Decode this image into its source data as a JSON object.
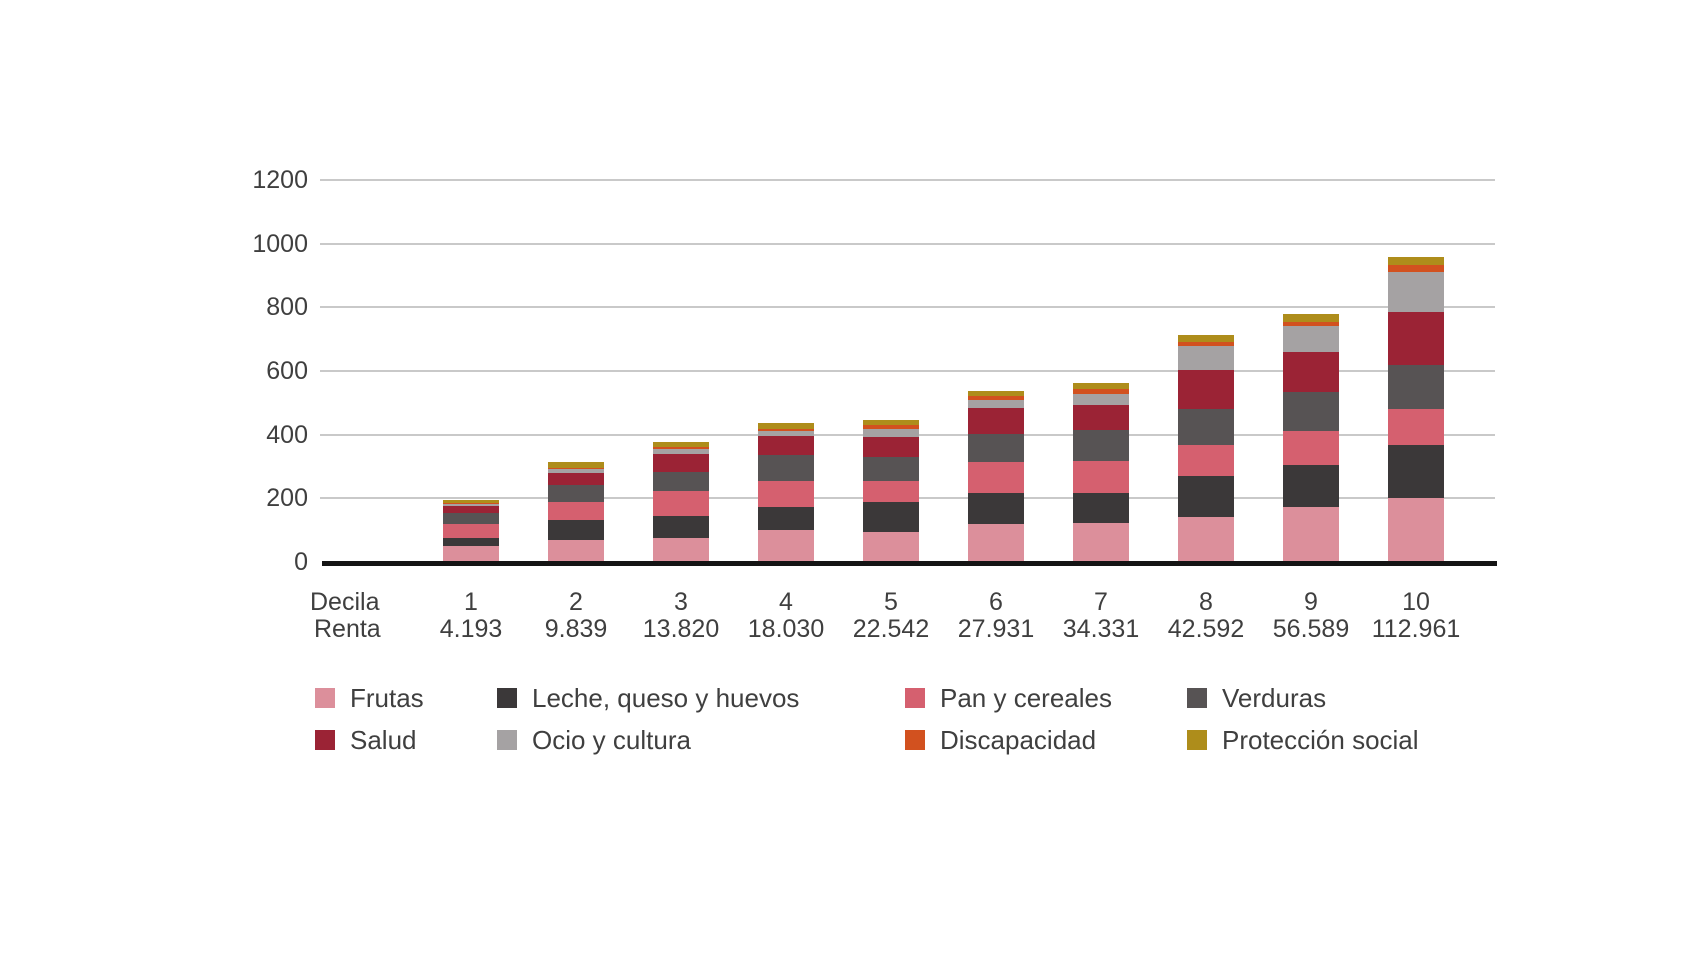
{
  "chart_data": {
    "type": "bar",
    "stacked": true,
    "title": "",
    "xlabel": "",
    "ylabel": "",
    "ylim": [
      0,
      1200
    ],
    "y_ticks": [
      0,
      200,
      400,
      600,
      800,
      1000,
      1200
    ],
    "grid": true,
    "legend_position": "bottom",
    "categories": [
      "1",
      "2",
      "3",
      "4",
      "5",
      "6",
      "7",
      "8",
      "9",
      "10"
    ],
    "x_axis_rows": [
      {
        "label": "Decila",
        "values": [
          "1",
          "2",
          "3",
          "4",
          "5",
          "6",
          "7",
          "8",
          "9",
          "10"
        ]
      },
      {
        "label": "Renta",
        "values": [
          "4.193",
          "9.839",
          "13.820",
          "18.030",
          "22.542",
          "27.931",
          "34.331",
          "42.592",
          "56.589",
          "112.961"
        ]
      }
    ],
    "series": [
      {
        "name": "Frutas",
        "color": "#DC8F9B",
        "values": [
          50,
          68,
          75,
          100,
          95,
          118,
          122,
          140,
          173,
          200
        ]
      },
      {
        "name": "Leche, queso y huevos",
        "color": "#3B3839",
        "values": [
          25,
          63,
          69,
          74,
          92,
          100,
          95,
          131,
          132,
          166
        ]
      },
      {
        "name": "Pan y cereales",
        "color": "#D5606F",
        "values": [
          44,
          56,
          80,
          79,
          67,
          95,
          101,
          98,
          108,
          114
        ]
      },
      {
        "name": "Verduras",
        "color": "#575354",
        "values": [
          34,
          55,
          59,
          84,
          75,
          90,
          98,
          112,
          120,
          140
        ]
      },
      {
        "name": "Salud",
        "color": "#9B2335",
        "values": [
          22,
          39,
          57,
          60,
          65,
          80,
          77,
          121,
          127,
          166
        ]
      },
      {
        "name": "Ocio y cultura",
        "color": "#A5A2A3",
        "values": [
          7,
          10,
          16,
          16,
          24,
          26,
          36,
          77,
          81,
          126
        ]
      },
      {
        "name": "Discapacidad",
        "color": "#D2511F",
        "values": [
          3,
          4,
          5,
          5,
          12,
          13,
          15,
          13,
          14,
          22
        ]
      },
      {
        "name": "Protección social",
        "color": "#AE8D1B",
        "values": [
          10,
          18,
          16,
          18,
          16,
          16,
          19,
          20,
          24,
          23
        ]
      }
    ],
    "legend_rows": [
      [
        0,
        1,
        2,
        3
      ],
      [
        4,
        5,
        6,
        7
      ]
    ]
  },
  "colors": {
    "gridline": "#c9c9c9",
    "axis_line": "#141414",
    "tick_text": "#3f3f3f",
    "background": "#ffffff"
  }
}
